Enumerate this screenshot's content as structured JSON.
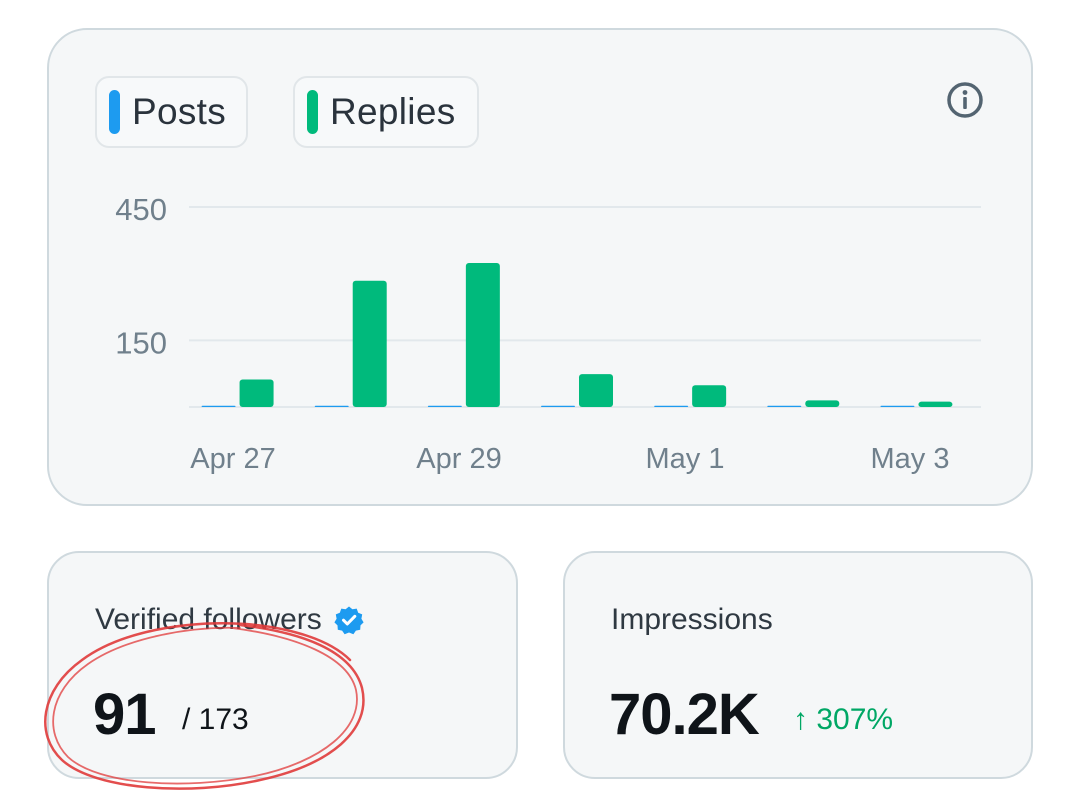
{
  "chart_card": {
    "legend": [
      {
        "label": "Posts",
        "color": "#1d9bf0"
      },
      {
        "label": "Replies",
        "color": "#00ba7c"
      }
    ],
    "info_icon": "info-circle-icon"
  },
  "chart_data": {
    "type": "bar",
    "categories": [
      "Apr 27",
      "Apr 28",
      "Apr 29",
      "Apr 30",
      "May 1",
      "May 2",
      "May 3"
    ],
    "x_tick_labels": [
      "Apr 27",
      "Apr 29",
      "May 1",
      "May 3"
    ],
    "y_tick_labels": [
      "450",
      "150"
    ],
    "y_ticks": [
      450,
      150
    ],
    "ylim": [
      0,
      450
    ],
    "grid": true,
    "series": [
      {
        "name": "Posts",
        "color": "#1d9bf0",
        "values": [
          0,
          2,
          2,
          2,
          2,
          0,
          0
        ]
      },
      {
        "name": "Replies",
        "color": "#00ba7c",
        "values": [
          62,
          284,
          324,
          74,
          49,
          15,
          12
        ]
      }
    ]
  },
  "followers": {
    "title": "Verified followers",
    "value": "91",
    "total": "/ 173",
    "badge_icon": "verified-badge-icon",
    "badge_color": "#1d9bf0"
  },
  "impressions": {
    "title": "Impressions",
    "value": "70.2K",
    "change": "↑ 307%",
    "change_color": "#00a765"
  },
  "annotation_color": "#e03a3a"
}
